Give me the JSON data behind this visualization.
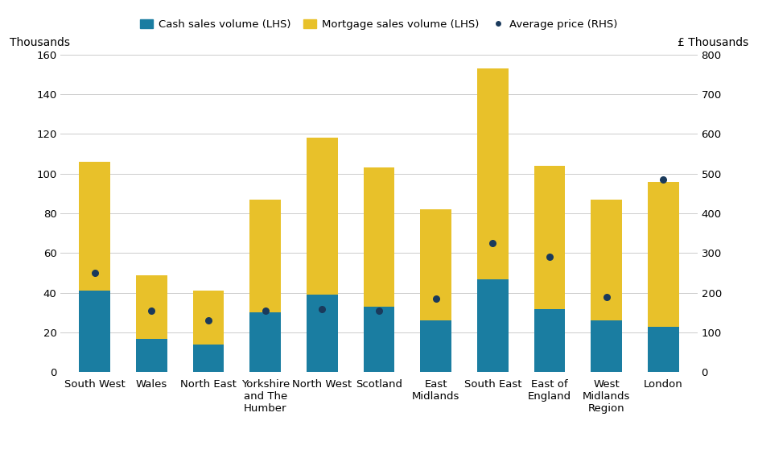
{
  "categories": [
    "South West",
    "Wales",
    "North East",
    "Yorkshire\nand The\nHumber",
    "North West",
    "Scotland",
    "East\nMidlands",
    "South East",
    "East of\nEngland",
    "West\nMidlands\nRegion",
    "London"
  ],
  "cash_sales": [
    41,
    17,
    14,
    30,
    39,
    33,
    26,
    47,
    32,
    26,
    23
  ],
  "total_sales": [
    106,
    49,
    41,
    87,
    118,
    103,
    82,
    153,
    104,
    87,
    96
  ],
  "avg_price": [
    250,
    155,
    130,
    155,
    160,
    155,
    185,
    325,
    290,
    190,
    485
  ],
  "cash_color": "#1a7da1",
  "mortgage_color": "#e8c12a",
  "dot_color": "#1a3a5c",
  "background_color": "#ffffff",
  "grid_color": "#cccccc",
  "lhs_label": "Thousands",
  "rhs_label": "£ Thousands",
  "lhs_ylim": [
    0,
    160
  ],
  "rhs_ylim": [
    0,
    800
  ],
  "lhs_yticks": [
    0,
    20,
    40,
    60,
    80,
    100,
    120,
    140,
    160
  ],
  "rhs_yticks": [
    0,
    100,
    200,
    300,
    400,
    500,
    600,
    700,
    800
  ],
  "legend_labels": [
    "Cash sales volume (LHS)",
    "Mortgage sales volume (LHS)",
    "Average price (RHS)"
  ],
  "axis_label_fontsize": 10,
  "tick_fontsize": 9.5,
  "bar_width": 0.55
}
